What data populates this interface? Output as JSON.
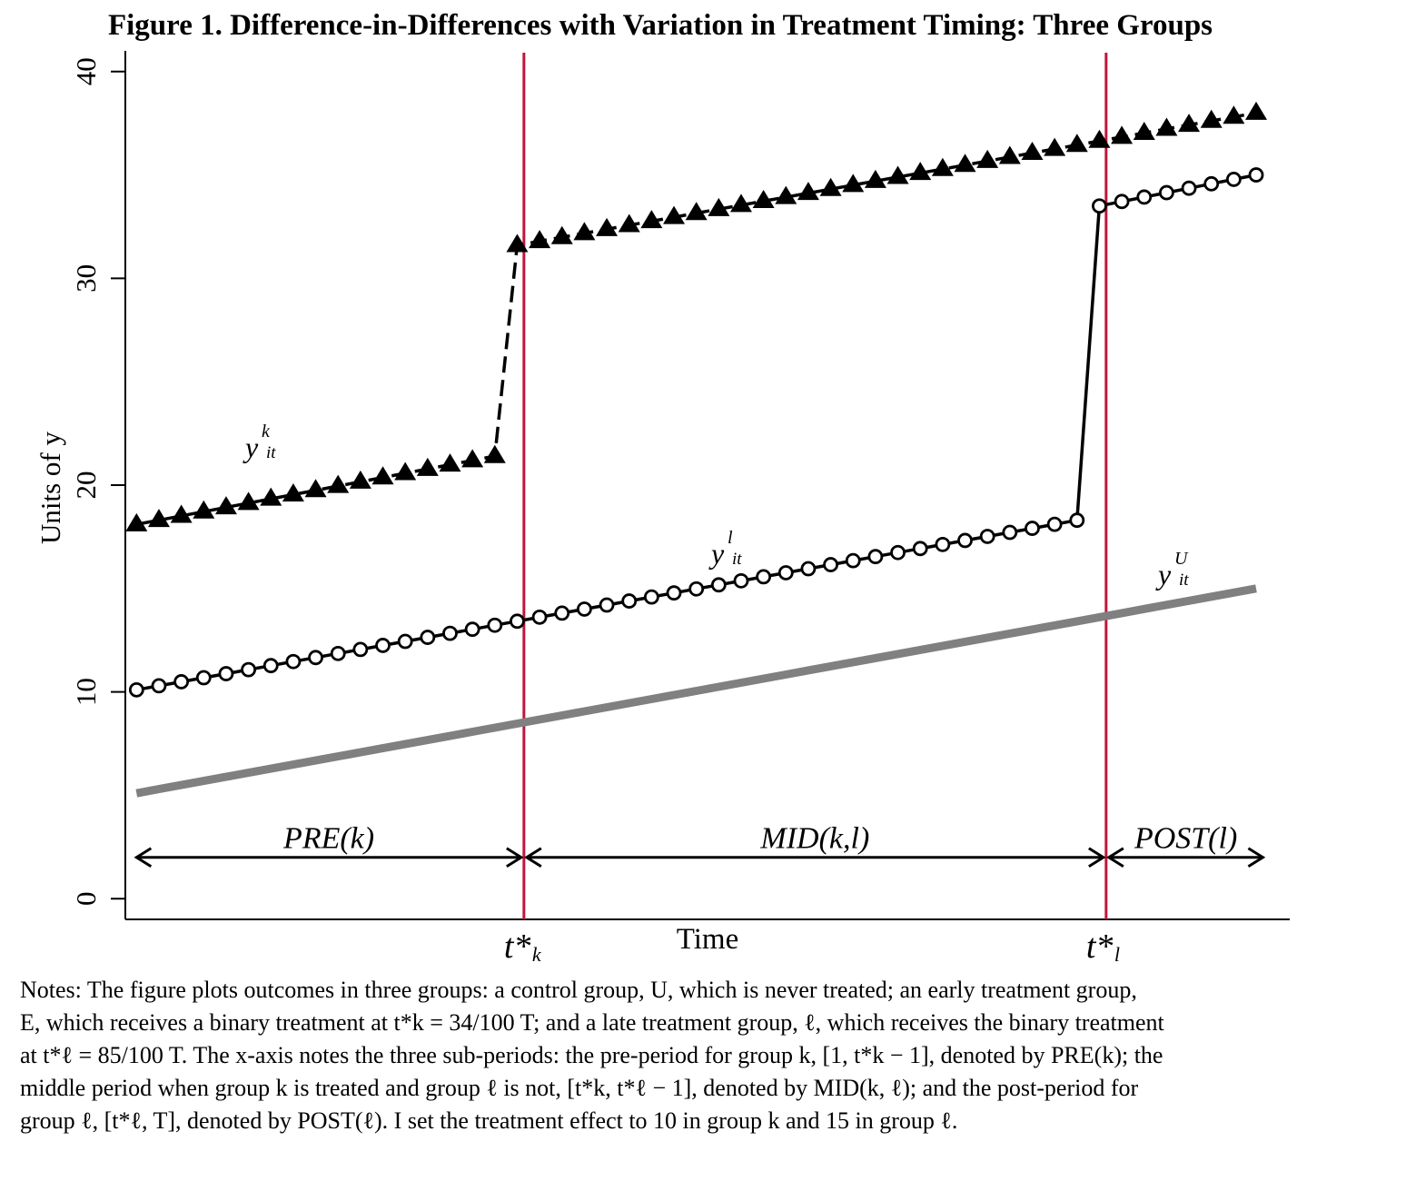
{
  "chart_data": {
    "type": "line",
    "title": "Figure 1. Difference-in-Differences with Variation in Treatment Timing: Three Groups",
    "xlabel": "Time",
    "ylabel": "Units of y",
    "ylim": [
      -1,
      41
    ],
    "yticks": [
      0,
      10,
      20,
      30,
      40
    ],
    "xlim": [
      -0.5,
      51.5
    ],
    "grid": false,
    "treatment_times": {
      "k": {
        "x": 17.3,
        "label_main": "t*",
        "label_sub": "k"
      },
      "l": {
        "x": 43.3,
        "label_main": "t*",
        "label_sub": "l"
      }
    },
    "series": [
      {
        "line_label": {
          "main": "y",
          "sup": "k",
          "sub": "it"
        },
        "marker": "triangle",
        "line_style": "dashed",
        "color": "#000000",
        "segments": [
          {
            "x0": 0,
            "x1": 16,
            "y0": 18.1,
            "y1": 21.4
          },
          {
            "x0": 17,
            "x1": 50,
            "y0": 31.6,
            "y1": 38.0
          }
        ]
      },
      {
        "line_label": {
          "main": "y",
          "sup": "l",
          "sub": "it"
        },
        "marker": "circle",
        "line_style": "solid",
        "color": "#000000",
        "segments": [
          {
            "x0": 0,
            "x1": 42,
            "y0": 10.1,
            "y1": 18.3
          },
          {
            "x0": 43,
            "x1": 50,
            "y0": 33.5,
            "y1": 35.0
          }
        ]
      },
      {
        "line_label": {
          "main": "y",
          "sup": "U",
          "sub": "it"
        },
        "marker": "none",
        "line_style": "solid-thick",
        "color": "#808080",
        "segments": [
          {
            "x0": 0,
            "x1": 50,
            "y0": 5.1,
            "y1": 15.0
          }
        ]
      }
    ],
    "periods": [
      {
        "label": "PRE(k)",
        "x0": 0,
        "x1": 17.3
      },
      {
        "label": "MID(k,l)",
        "x0": 17.3,
        "x1": 43.3
      },
      {
        "label": "POST(l)",
        "x0": 43.3,
        "x1": 50.3
      }
    ],
    "period_arrow_y": 2,
    "colors": {
      "vline": "#c0163a",
      "axis": "#000000",
      "control": "#808080"
    }
  },
  "notes": {
    "line1": "Notes: The figure plots outcomes in three groups: a control group, U, which is never treated; an early treatment group,",
    "line2": "E, which receives a binary treatment at t*k = 34/100 T; and a late treatment group, ℓ, which receives the binary treatment",
    "line3": "at t*ℓ = 85/100 T. The x-axis notes the three sub-periods: the pre-period for group k, [1, t*k − 1], denoted by PRE(k); the",
    "line4": "middle period when group k is treated and group ℓ is not, [t*k, t*ℓ − 1], denoted by MID(k, ℓ); and the post-period for",
    "line5": "group ℓ, [t*ℓ, T], denoted by POST(ℓ). I set the treatment effect to 10 in group k and 15 in group ℓ."
  }
}
